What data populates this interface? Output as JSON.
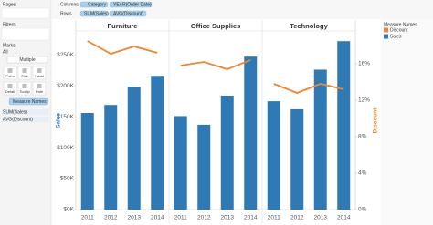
{
  "ui": {
    "pages": "Pages",
    "filters": "Filters",
    "marks": "Marks",
    "marks_all": "All",
    "mark_type": "Multiple",
    "mark_buttons": [
      "Color",
      "Size",
      "Label",
      "Detail",
      "Tooltip",
      "Path"
    ],
    "marks_fields": [
      "Measure Names",
      "SUM(Sales)",
      "AVG(Discount)"
    ],
    "columns_label": "Columns",
    "columns": [
      "Category",
      "YEAR(Order Date)"
    ],
    "rows_label": "Rows",
    "rows": [
      "SUM(Sales)",
      "AVG(Discount)"
    ]
  },
  "chart_data": {
    "type": "bar",
    "y_label": "Sales",
    "y2_label": "Discount",
    "legend_title": "Measure Names",
    "series": [
      {
        "name": "Discount",
        "color": "#f0852d",
        "type": "line",
        "axis": "y2"
      },
      {
        "name": "Sales",
        "color": "#2f7ab5",
        "type": "bar"
      }
    ],
    "panes": [
      {
        "title": "Furniture",
        "categories": [
          "2011",
          "2012",
          "2013",
          "2014"
        ],
        "values": [
          [
            18.5,
            17.1,
            17.9,
            17.2
          ],
          [
            156000,
            169000,
            198000,
            216000
          ]
        ]
      },
      {
        "title": "Office Supplies",
        "categories": [
          "2011",
          "2012",
          "2013",
          "2014"
        ],
        "values": [
          [
            15.8,
            16.2,
            15.4,
            16.4
          ],
          [
            151000,
            137000,
            184000,
            247000
          ]
        ]
      },
      {
        "title": "Technology",
        "categories": [
          "2011",
          "2012",
          "2013",
          "2014"
        ],
        "values": [
          [
            13.8,
            12.8,
            13.8,
            13.2
          ],
          [
            175000,
            162000,
            226000,
            272000
          ]
        ]
      }
    ],
    "ylim": [
      0,
      287000
    ],
    "yticks": [
      {
        "value": 0,
        "label": "$0K"
      },
      {
        "value": 50000,
        "label": "$50K"
      },
      {
        "value": 100000,
        "label": "$100K"
      },
      {
        "value": 150000,
        "label": "$150K"
      },
      {
        "value": 200000,
        "label": "$200K"
      },
      {
        "value": 250000,
        "label": "$250K"
      }
    ],
    "y2lim": [
      0,
      19.5
    ],
    "y2ticks": [
      {
        "value": 0,
        "label": "0%"
      },
      {
        "value": 4,
        "label": "4%"
      },
      {
        "value": 8,
        "label": "8%"
      },
      {
        "value": 12,
        "label": "12%"
      },
      {
        "value": 16,
        "label": "16%"
      }
    ]
  }
}
